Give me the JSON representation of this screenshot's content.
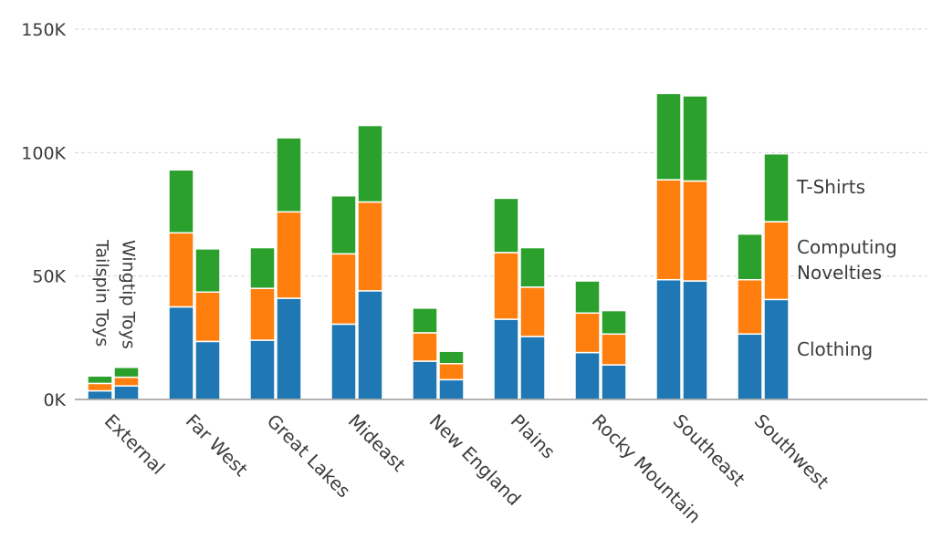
{
  "chart_data": {
    "type": "bar",
    "stacked": true,
    "categories": [
      "External",
      "Far West",
      "Great Lakes",
      "Mideast",
      "New England",
      "Plains",
      "Rocky Mountain",
      "Southeast",
      "Southwest"
    ],
    "groups": [
      "Tailspin Toys",
      "Wingtip Toys"
    ],
    "series": [
      {
        "name": "Clothing",
        "color": "#1f77b4",
        "values": {
          "Tailspin Toys": [
            3500,
            37500,
            24000,
            30500,
            15500,
            32500,
            19000,
            48500,
            26500
          ],
          "Wingtip Toys": [
            5500,
            23500,
            41000,
            44000,
            8000,
            25500,
            14000,
            48000,
            40500
          ]
        }
      },
      {
        "name": "Computing Novelties",
        "color": "#ff7f0e",
        "values": {
          "Tailspin Toys": [
            3000,
            30000,
            21000,
            28500,
            11500,
            27000,
            16000,
            40500,
            22000
          ],
          "Wingtip Toys": [
            3500,
            20000,
            35000,
            36000,
            6500,
            20000,
            12500,
            40500,
            31500
          ]
        }
      },
      {
        "name": "T-Shirts",
        "color": "#2ca02c",
        "values": {
          "Tailspin Toys": [
            3000,
            25500,
            16500,
            23500,
            10000,
            22000,
            13000,
            35000,
            18500
          ],
          "Wingtip Toys": [
            4000,
            17500,
            30000,
            31000,
            5000,
            16000,
            9500,
            34500,
            27500
          ]
        }
      }
    ],
    "y_ticks": [
      "0K",
      "50K",
      "100K",
      "150K"
    ],
    "y_tick_values": [
      0,
      50000,
      100000,
      150000
    ],
    "ylim": [
      0,
      150000
    ],
    "grid": true,
    "bar_labels": [
      "Tailspin Toys",
      "Wingtip Toys"
    ],
    "series_labels": [
      "T-Shirts",
      "Computing",
      "Novelties",
      "Clothing"
    ],
    "title": "",
    "xlabel": "",
    "ylabel": ""
  }
}
